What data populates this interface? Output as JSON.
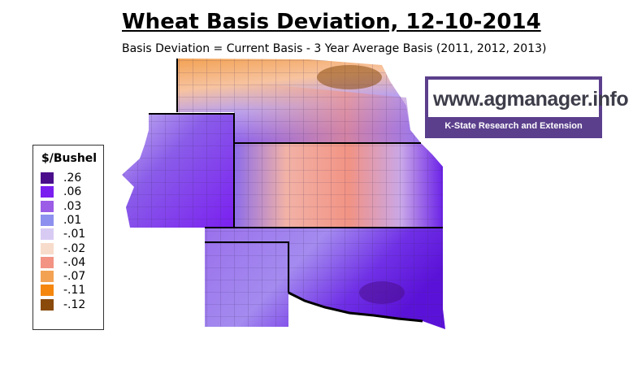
{
  "header": {
    "title": "Wheat Basis Deviation, 12-10-2014",
    "subtitle": "Basis Deviation = Current Basis - 3 Year Average Basis (2011, 2012, 2013)"
  },
  "logo": {
    "url": "www.agmanager.info",
    "tagline": "K-State Research and Extension"
  },
  "legend": {
    "title": "$/Bushel",
    "items": [
      {
        "label": ".26",
        "color": "#4a0e8c"
      },
      {
        "label": ".06",
        "color": "#7a1ff0"
      },
      {
        "label": ".03",
        "color": "#9b5ce6"
      },
      {
        "label": ".01",
        "color": "#8d90ef"
      },
      {
        "label": "-.01",
        "color": "#d8cbf3"
      },
      {
        "label": "-.02",
        "color": "#f7dccb"
      },
      {
        "label": "-.04",
        "color": "#f29384"
      },
      {
        "label": "-.07",
        "color": "#f3a253"
      },
      {
        "label": "-.11",
        "color": "#f5870f"
      },
      {
        "label": "-.12",
        "color": "#8a4a0c"
      }
    ]
  }
}
